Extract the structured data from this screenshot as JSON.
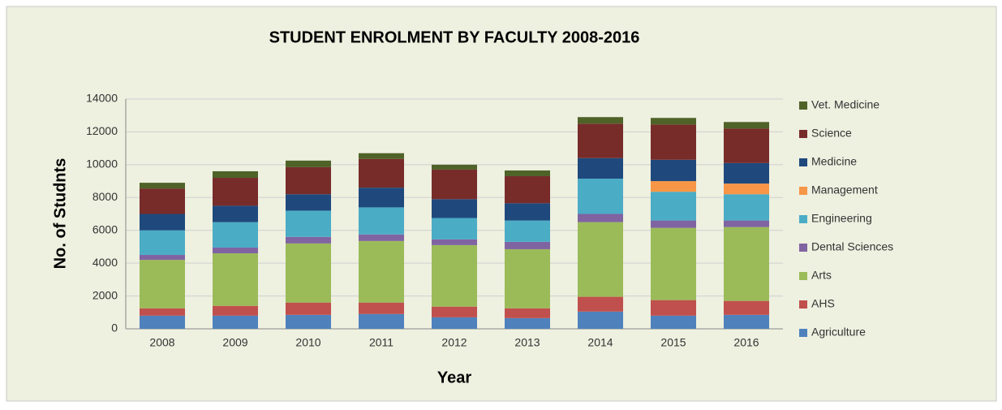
{
  "chart_data": {
    "type": "stacked_bar",
    "title": "STUDENT ENROLMENT BY FACULTY 2008-2016",
    "x_label": "Year",
    "y_label": "No. of Studnts",
    "categories": [
      "2008",
      "2009",
      "2010",
      "2011",
      "2012",
      "2013",
      "2014",
      "2015",
      "2016"
    ],
    "series": [
      {
        "name": "Agriculture",
        "color": "#4f81bd",
        "values": [
          800,
          800,
          850,
          900,
          700,
          650,
          1050,
          800,
          850
        ]
      },
      {
        "name": "AHS",
        "color": "#c0504d",
        "values": [
          450,
          600,
          750,
          700,
          650,
          600,
          900,
          950,
          850
        ]
      },
      {
        "name": "Arts",
        "color": "#9bbb59",
        "values": [
          2950,
          3200,
          3600,
          3750,
          3750,
          3600,
          4550,
          4400,
          4500
        ]
      },
      {
        "name": "Dental Sciences",
        "color": "#8064a2",
        "values": [
          300,
          350,
          400,
          400,
          350,
          450,
          500,
          450,
          400
        ]
      },
      {
        "name": "Engineering",
        "color": "#4bacc6",
        "values": [
          1500,
          1550,
          1600,
          1650,
          1300,
          1300,
          2150,
          1750,
          1600
        ]
      },
      {
        "name": "Management",
        "color": "#f79646",
        "values": [
          0,
          0,
          0,
          0,
          0,
          0,
          0,
          650,
          650
        ]
      },
      {
        "name": "Medicine",
        "color": "#1f497d",
        "values": [
          1000,
          1000,
          1000,
          1200,
          1150,
          1050,
          1250,
          1300,
          1250
        ]
      },
      {
        "name": "Science",
        "color": "#772c2a",
        "values": [
          1550,
          1700,
          1650,
          1750,
          1800,
          1650,
          2100,
          2150,
          2100
        ]
      },
      {
        "name": "Vet. Medicine",
        "color": "#4f6228",
        "values": [
          350,
          400,
          400,
          350,
          300,
          350,
          400,
          400,
          400
        ]
      }
    ],
    "ylim": [
      0,
      14000
    ],
    "yticks": [
      0,
      2000,
      4000,
      6000,
      8000,
      10000,
      12000,
      14000
    ],
    "grid": true,
    "legend": "right"
  }
}
